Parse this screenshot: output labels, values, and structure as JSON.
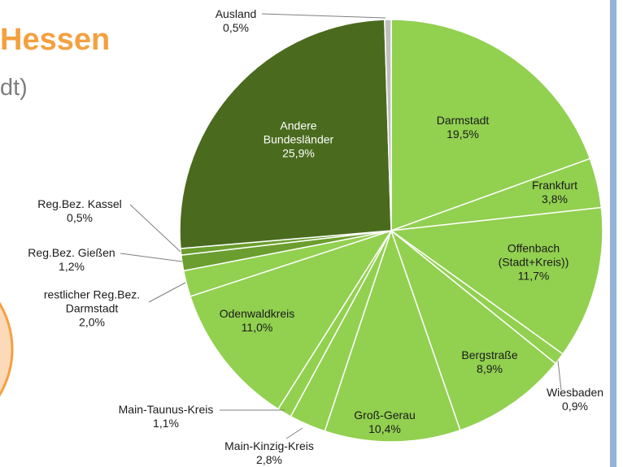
{
  "chart_data": {
    "type": "pie",
    "title": "Hessen",
    "subtitle": "dt)",
    "categories": [
      "Darmstadt",
      "Frankfurt",
      "Offenbach (Stadt+Kreis))",
      "Wiesbaden",
      "Bergstraße",
      "Groß-Gerau",
      "Main-Kinzig-Kreis",
      "Main-Taunus-Kreis",
      "Odenwaldkreis",
      "restlicher Reg.Bez. Darmstadt",
      "Reg.Bez. Gießen",
      "Reg.Bez. Kassel",
      "Andere Bundesländer",
      "Ausland"
    ],
    "values": [
      19.5,
      3.8,
      11.7,
      0.9,
      8.9,
      10.4,
      2.8,
      1.1,
      11.0,
      2.0,
      1.2,
      0.5,
      25.9,
      0.5
    ],
    "value_labels": [
      "19,5%",
      "3,8%",
      "11,7%",
      "0,9%",
      "8,9%",
      "10,4%",
      "2,8%",
      "1,1%",
      "11,0%",
      "2,0%",
      "1,2%",
      "0,5%",
      "25,9%",
      "0,5%"
    ],
    "colors": [
      "#92d050",
      "#92d050",
      "#92d050",
      "#92d050",
      "#92d050",
      "#92d050",
      "#92d050",
      "#92d050",
      "#92d050",
      "#92d050",
      "#6b9e2e",
      "#6b9e2e",
      "#4a6b1e",
      "#bfbfbf"
    ]
  }
}
